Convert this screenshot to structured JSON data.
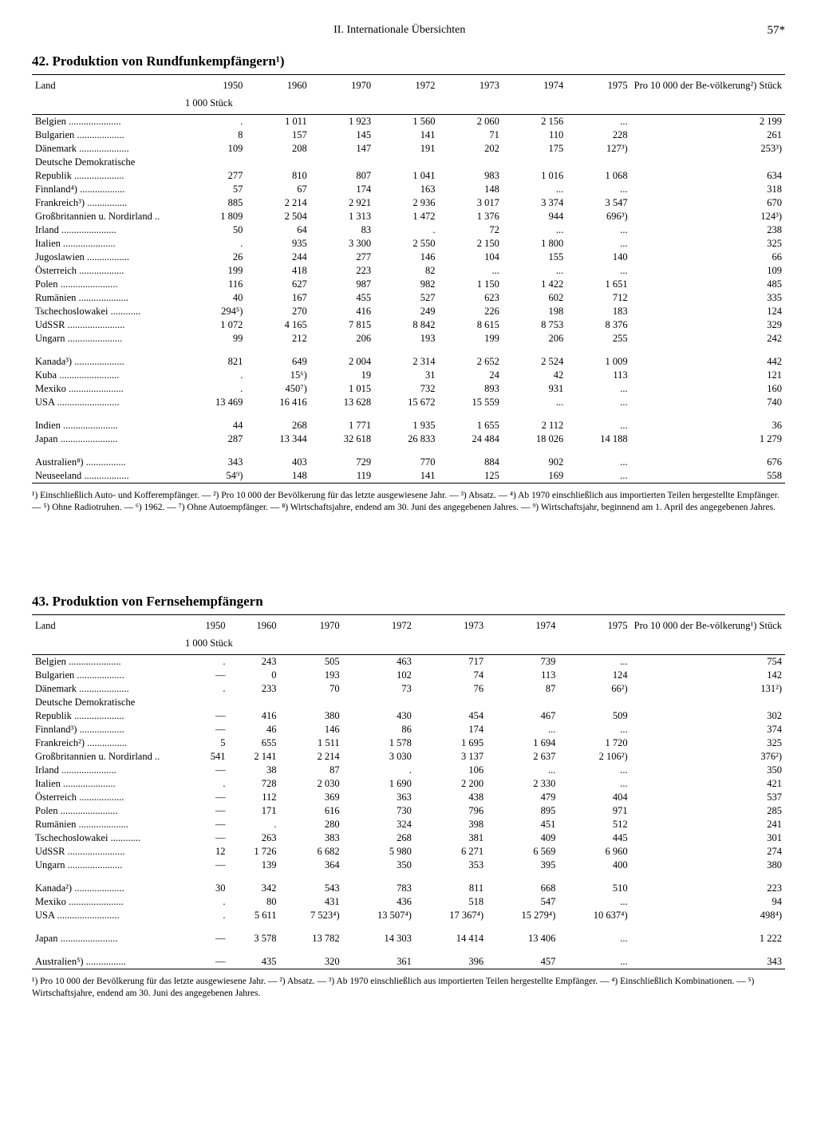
{
  "header": {
    "section": "II. Internationale Übersichten",
    "page": "57*"
  },
  "table42": {
    "title": "42. Produktion von Rundfunkempfängern¹)",
    "col_land": "Land",
    "cols": [
      "1950",
      "1960",
      "1970",
      "1972",
      "1973",
      "1974",
      "1975"
    ],
    "col_last": "Pro 10 000 der Be-völkerung²) Stück",
    "unit": "1 000 Stück",
    "rows": [
      [
        "Belgien",
        ".",
        "1 011",
        "1 923",
        "1 560",
        "2 060",
        "2 156",
        "...",
        "2 199"
      ],
      [
        "Bulgarien",
        "8",
        "157",
        "145",
        "141",
        "71",
        "110",
        "228",
        "261"
      ],
      [
        "Dänemark",
        "109",
        "208",
        "147",
        "191",
        "202",
        "175",
        "127³)",
        "253³)"
      ],
      [
        "Deutsche Demokratische",
        "",
        "",
        "",
        "",
        "",
        "",
        "",
        ""
      ],
      [
        "  Republik",
        "277",
        "810",
        "807",
        "1 041",
        "983",
        "1 016",
        "1 068",
        "634"
      ],
      [
        "Finnland⁴)",
        "57",
        "67",
        "174",
        "163",
        "148",
        "...",
        "...",
        "318"
      ],
      [
        "Frankreich³)",
        "885",
        "2 214",
        "2 921",
        "2 936",
        "3 017",
        "3 374",
        "3 547",
        "670"
      ],
      [
        "Großbritannien u. Nordirland",
        "1 809",
        "2 504",
        "1 313",
        "1 472",
        "1 376",
        "944",
        "696³)",
        "124³)"
      ],
      [
        "Irland",
        "50",
        "64",
        "83",
        ".",
        "72",
        "...",
        "...",
        "238"
      ],
      [
        "Italien",
        ".",
        "935",
        "3 300",
        "2 550",
        "2 150",
        "1 800",
        "...",
        "325"
      ],
      [
        "Jugoslawien",
        "26",
        "244",
        "277",
        "146",
        "104",
        "155",
        "140",
        "66"
      ],
      [
        "Österreich",
        "199",
        "418",
        "223",
        "82",
        "...",
        "...",
        "...",
        "109"
      ],
      [
        "Polen",
        "116",
        "627",
        "987",
        "982",
        "1 150",
        "1 422",
        "1 651",
        "485"
      ],
      [
        "Rumänien",
        "40",
        "167",
        "455",
        "527",
        "623",
        "602",
        "712",
        "335"
      ],
      [
        "Tschechoslowakei",
        "294⁵)",
        "270",
        "416",
        "249",
        "226",
        "198",
        "183",
        "124"
      ],
      [
        "UdSSR",
        "1 072",
        "4 165",
        "7 815",
        "8 842",
        "8 615",
        "8 753",
        "8 376",
        "329"
      ],
      [
        "Ungarn",
        "99",
        "212",
        "206",
        "193",
        "199",
        "206",
        "255",
        "242"
      ]
    ],
    "rows2": [
      [
        "Kanada³)",
        "821",
        "649",
        "2 004",
        "2 314",
        "2 652",
        "2 524",
        "1 009",
        "442"
      ],
      [
        "Kuba",
        ".",
        "15⁶)",
        "19",
        "31",
        "24",
        "42",
        "113",
        "121"
      ],
      [
        "Mexiko",
        ".",
        "450⁷)",
        "1 015",
        "732",
        "893",
        "931",
        "...",
        "160"
      ],
      [
        "USA",
        "13 469",
        "16 416",
        "13 628",
        "15 672",
        "15 559",
        "...",
        "...",
        "740"
      ]
    ],
    "rows3": [
      [
        "Indien",
        "44",
        "268",
        "1 771",
        "1 935",
        "1 655",
        "2 112",
        "...",
        "36"
      ],
      [
        "Japan",
        "287",
        "13 344",
        "32 618",
        "26 833",
        "24 484",
        "18 026",
        "14 188",
        "1 279"
      ]
    ],
    "rows4": [
      [
        "Australien⁸)",
        "343",
        "403",
        "729",
        "770",
        "884",
        "902",
        "...",
        "676"
      ],
      [
        "Neuseeland",
        "54⁹)",
        "148",
        "119",
        "141",
        "125",
        "169",
        "...",
        "558"
      ]
    ],
    "footnote": "¹) Einschließlich Auto- und Kofferempfänger. — ²) Pro 10 000 der Bevölkerung für das letzte ausgewiesene Jahr. — ³) Absatz. — ⁴) Ab 1970 einschließlich aus importierten Teilen hergestellte Empfänger. — ⁵) Ohne Radiotruhen. — ⁶) 1962. — ⁷) Ohne Autoempfänger. — ⁸) Wirtschaftsjahre, endend am 30. Juni des angegebenen Jahres. — ⁹) Wirtschaftsjahr, beginnend am 1. April des angegebenen Jahres."
  },
  "table43": {
    "title": "43. Produktion von Fernsehempfängern",
    "col_land": "Land",
    "cols": [
      "1950",
      "1960",
      "1970",
      "1972",
      "1973",
      "1974",
      "1975"
    ],
    "col_last": "Pro 10 000 der Be-völkerung¹) Stück",
    "unit": "1 000 Stück",
    "rows": [
      [
        "Belgien",
        ".",
        "243",
        "505",
        "463",
        "717",
        "739",
        "...",
        "754"
      ],
      [
        "Bulgarien",
        "—",
        "0",
        "193",
        "102",
        "74",
        "113",
        "124",
        "142"
      ],
      [
        "Dänemark",
        ".",
        "233",
        "70",
        "73",
        "76",
        "87",
        "66²)",
        "131²)"
      ],
      [
        "Deutsche Demokratische",
        "",
        "",
        "",
        "",
        "",
        "",
        "",
        ""
      ],
      [
        "  Republik",
        "—",
        "416",
        "380",
        "430",
        "454",
        "467",
        "509",
        "302"
      ],
      [
        "Finnland³)",
        "—",
        "46",
        "146",
        "86",
        "174",
        "...",
        "...",
        "374"
      ],
      [
        "Frankreich²)",
        "5",
        "655",
        "1 511",
        "1 578",
        "1 695",
        "1 694",
        "1 720",
        "325"
      ],
      [
        "Großbritannien u. Nordirland",
        "541",
        "2 141",
        "2 214",
        "3 030",
        "3 137",
        "2 637",
        "2 106²)",
        "376²)"
      ],
      [
        "Irland",
        "—",
        "38",
        "87",
        ".",
        "106",
        "...",
        "...",
        "350"
      ],
      [
        "Italien",
        ".",
        "728",
        "2 030",
        "1 690",
        "2 200",
        "2 330",
        "...",
        "421"
      ],
      [
        "Österreich",
        "—",
        "112",
        "369",
        "363",
        "438",
        "479",
        "404",
        "537"
      ],
      [
        "Polen",
        "—",
        "171",
        "616",
        "730",
        "796",
        "895",
        "971",
        "285"
      ],
      [
        "Rumänien",
        "—",
        ".",
        "280",
        "324",
        "398",
        "451",
        "512",
        "241"
      ],
      [
        "Tschechoslowakei",
        "—",
        "263",
        "383",
        "268",
        "381",
        "409",
        "445",
        "301"
      ],
      [
        "UdSSR",
        "12",
        "1 726",
        "6 682",
        "5 980",
        "6 271",
        "6 569",
        "6 960",
        "274"
      ],
      [
        "Ungarn",
        "—",
        "139",
        "364",
        "350",
        "353",
        "395",
        "400",
        "380"
      ]
    ],
    "rows2": [
      [
        "Kanada²)",
        "30",
        "342",
        "543",
        "783",
        "811",
        "668",
        "510",
        "223"
      ],
      [
        "Mexiko",
        ".",
        "80",
        "431",
        "436",
        "518",
        "547",
        "...",
        "94"
      ],
      [
        "USA",
        ".",
        "5 611",
        "7 523⁴)",
        "13 507⁴)",
        "17 367⁴)",
        "15 279⁴)",
        "10 637⁴)",
        "498⁴)"
      ]
    ],
    "rows3": [
      [
        "Japan",
        "—",
        "3 578",
        "13 782",
        "14 303",
        "14 414",
        "13 406",
        "...",
        "1 222"
      ]
    ],
    "rows4": [
      [
        "Australien⁵)",
        "—",
        "435",
        "320",
        "361",
        "396",
        "457",
        "...",
        "343"
      ]
    ],
    "footnote": "¹) Pro 10 000 der Bevölkerung für das letzte ausgewiesene Jahr. — ²) Absatz. — ³) Ab 1970 einschließlich aus importierten Teilen hergestellte Empfänger. — ⁴) Einschließlich Kombinationen. — ⁵) Wirtschaftsjahre, endend am 30. Juni des angegebenen Jahres."
  }
}
